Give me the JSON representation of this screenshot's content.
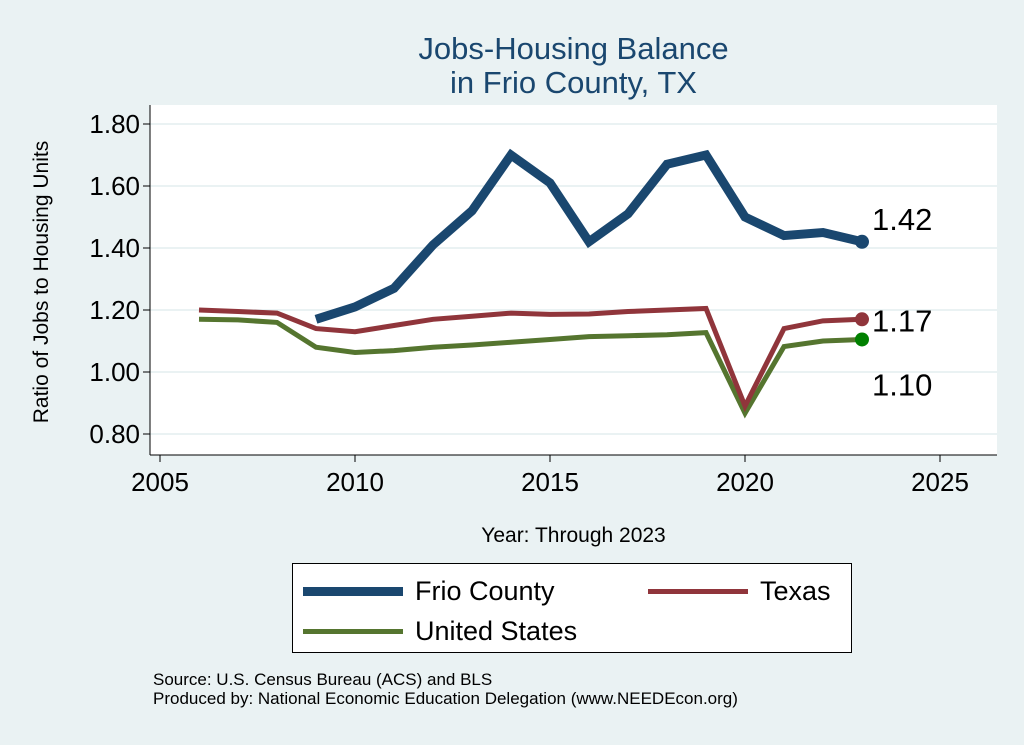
{
  "chart_data": {
    "type": "line",
    "title": [
      "Jobs-Housing Balance",
      "in Frio County, TX"
    ],
    "xlabel": "Year: Through 2023",
    "ylabel": "Ratio of Jobs to Housing Units",
    "xlim": [
      2005,
      2025
    ],
    "ylim": [
      0.8,
      1.8
    ],
    "xticks": [
      2005,
      2010,
      2015,
      2020,
      2025
    ],
    "xtick_labels": [
      "2005",
      "2010",
      "2015",
      "2020",
      "2025"
    ],
    "yticks": [
      0.8,
      1.0,
      1.2,
      1.4,
      1.6,
      1.8
    ],
    "ytick_labels": [
      "0.80",
      "1.00",
      "1.20",
      "1.40",
      "1.60",
      "1.80"
    ],
    "grid": true,
    "legend_position": "bottom",
    "series": [
      {
        "name": "Frio County",
        "color": "#1a476f",
        "end_label": "1.42",
        "x": [
          2009,
          2010,
          2011,
          2012,
          2013,
          2014,
          2015,
          2016,
          2017,
          2018,
          2019,
          2020,
          2021,
          2022,
          2023
        ],
        "values": [
          1.17,
          1.21,
          1.27,
          1.41,
          1.52,
          1.7,
          1.61,
          1.42,
          1.51,
          1.67,
          1.7,
          1.5,
          1.44,
          1.45,
          1.42
        ]
      },
      {
        "name": "Texas",
        "color": "#90353b",
        "end_label": "1.17",
        "x": [
          2006,
          2007,
          2008,
          2009,
          2010,
          2011,
          2012,
          2013,
          2014,
          2015,
          2016,
          2017,
          2018,
          2019,
          2020,
          2021,
          2022,
          2023
        ],
        "values": [
          1.2,
          1.195,
          1.19,
          1.14,
          1.13,
          1.15,
          1.17,
          1.18,
          1.19,
          1.186,
          1.187,
          1.195,
          1.2,
          1.205,
          0.89,
          1.14,
          1.165,
          1.17
        ]
      },
      {
        "name": "United States",
        "color": "#55752f",
        "end_label": "1.10",
        "end_marker_color": "#008000",
        "x": [
          2006,
          2007,
          2008,
          2009,
          2010,
          2011,
          2012,
          2013,
          2014,
          2015,
          2016,
          2017,
          2018,
          2019,
          2020,
          2021,
          2022,
          2023
        ],
        "values": [
          1.17,
          1.168,
          1.16,
          1.08,
          1.063,
          1.069,
          1.08,
          1.087,
          1.096,
          1.105,
          1.114,
          1.117,
          1.12,
          1.127,
          0.867,
          1.082,
          1.1,
          1.105
        ]
      }
    ]
  },
  "source": "Source: U.S. Census Bureau (ACS) and BLS",
  "producer": "Produced by: National Economic Education Delegation (www.NEEDEcon.org)"
}
